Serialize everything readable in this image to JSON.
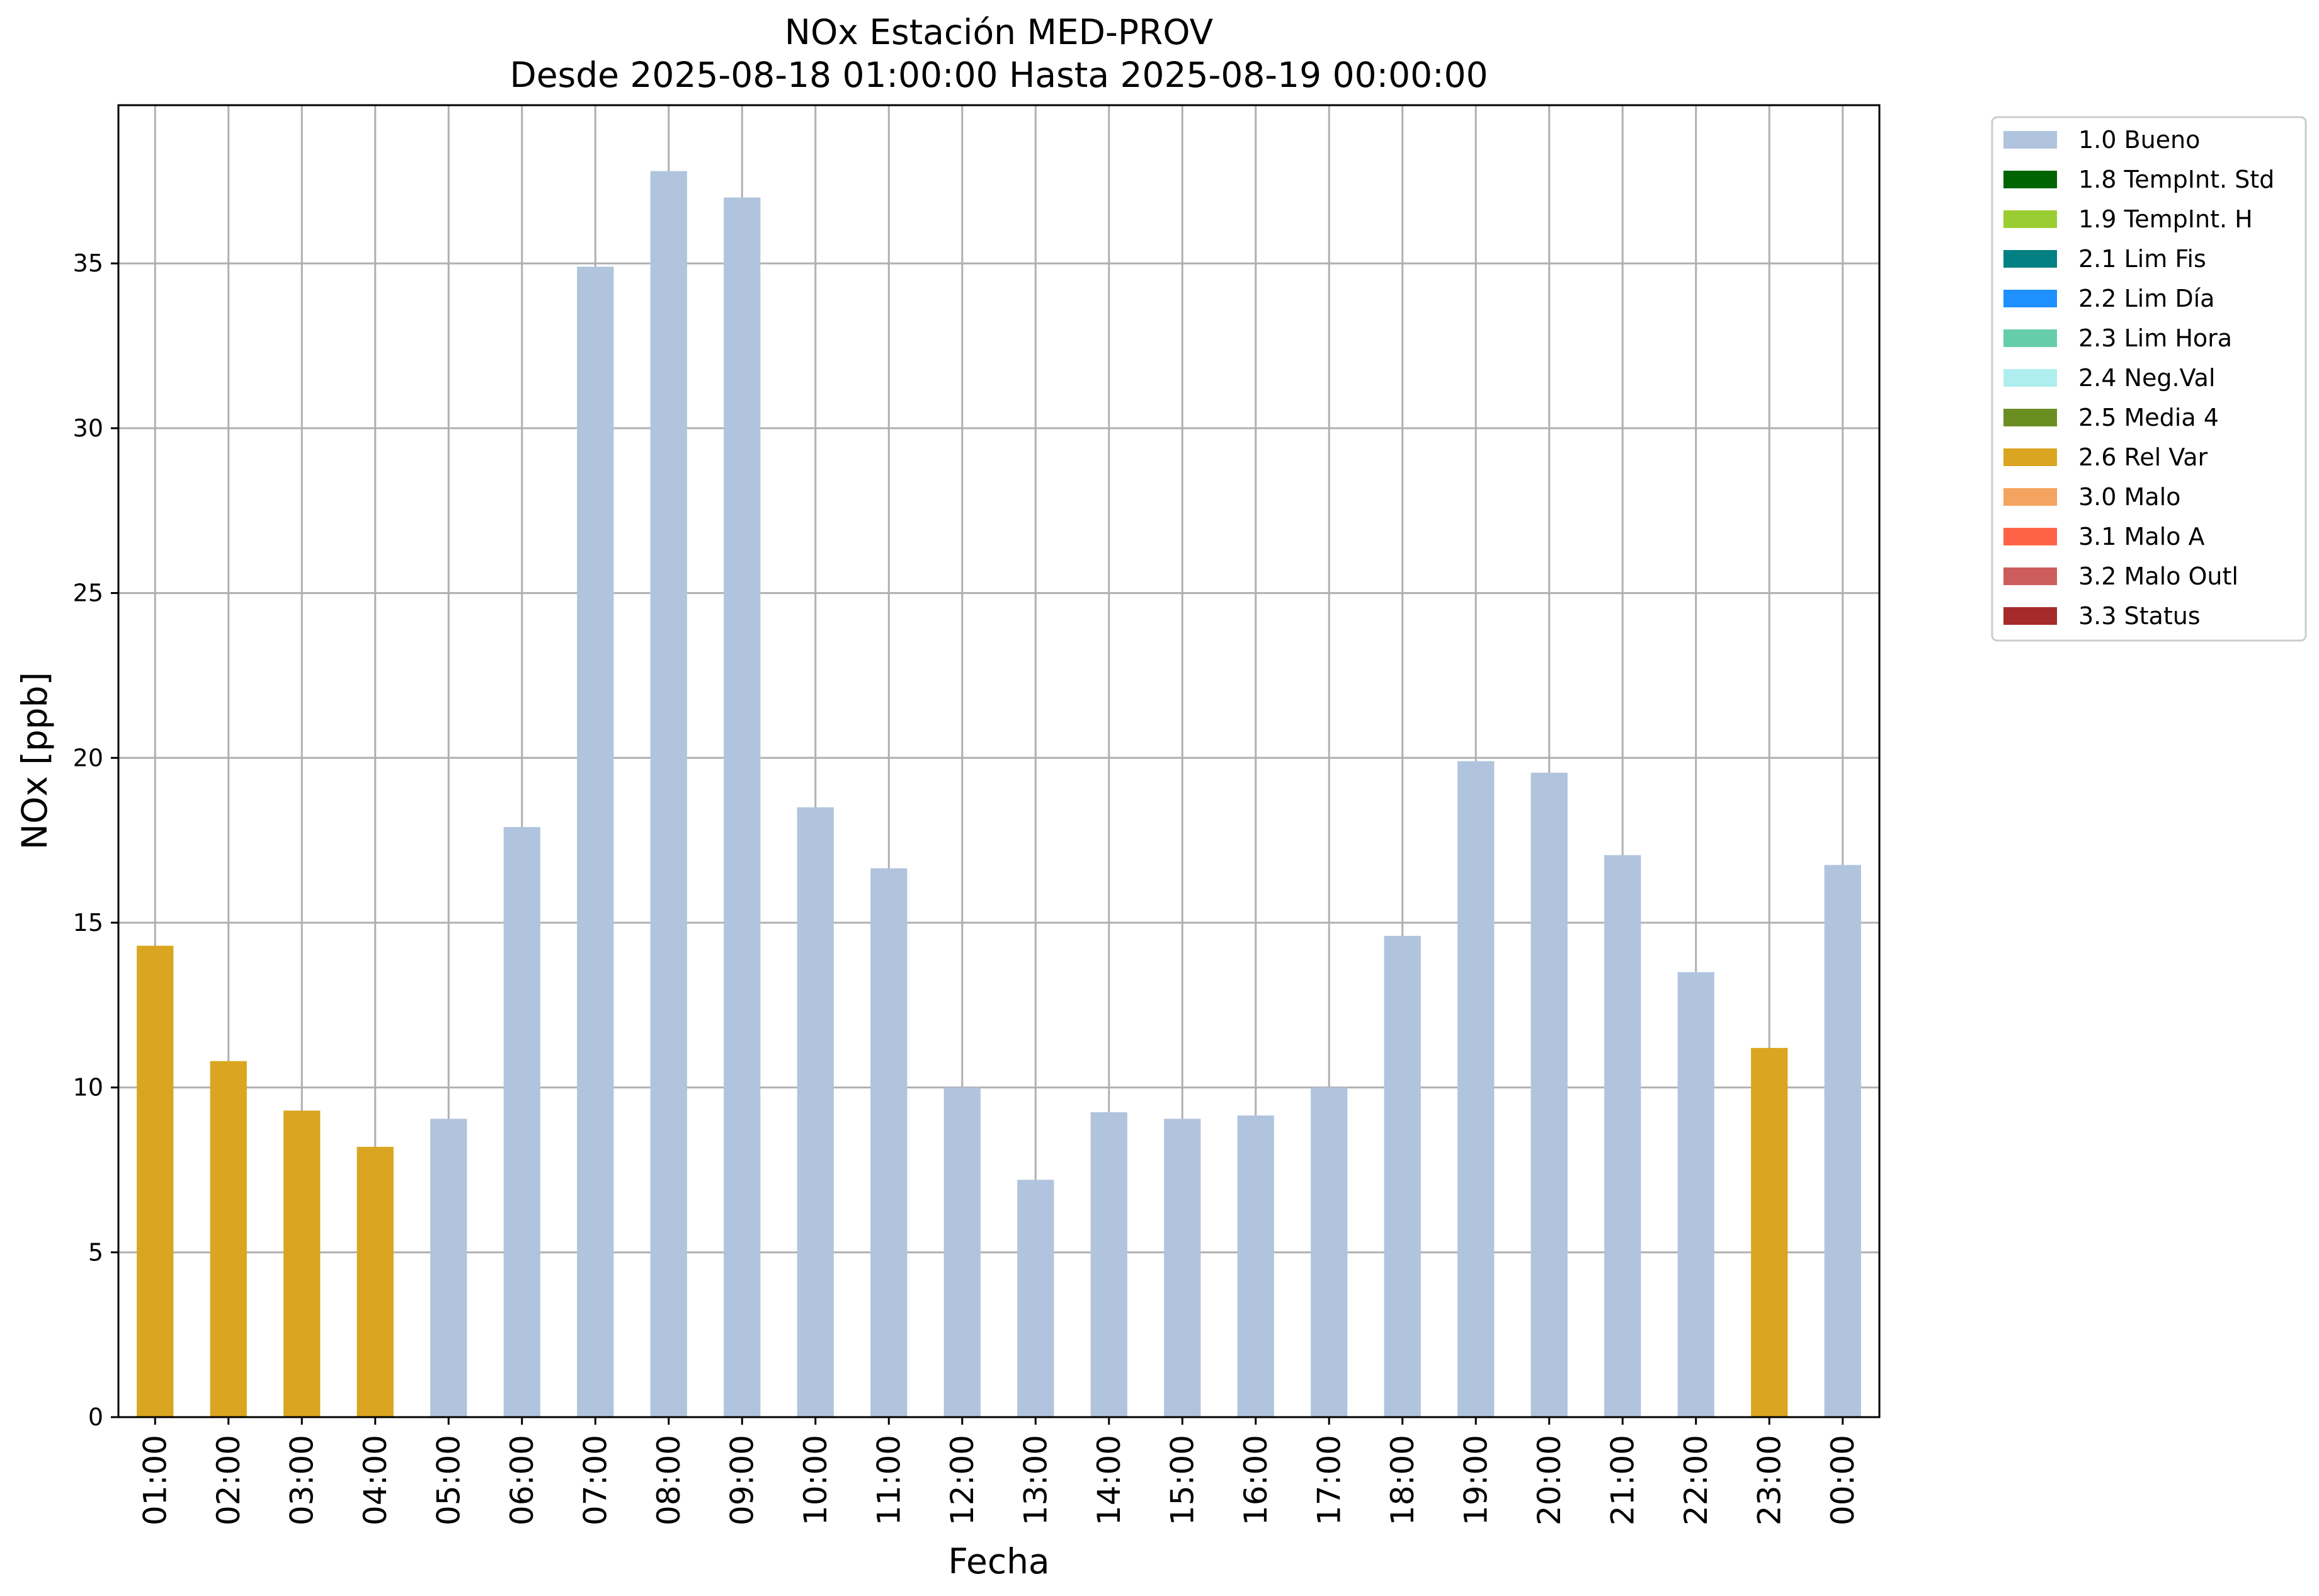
{
  "chart_data": {
    "type": "bar",
    "title": "NOx Estación MED-PROV",
    "subtitle": "Desde 2025-08-18 01:00:00 Hasta 2025-08-19 00:00:00",
    "xlabel": "Fecha",
    "ylabel": "NOx [ppb]",
    "ylim": [
      0,
      39.8
    ],
    "yticks": [
      0,
      5,
      10,
      15,
      20,
      25,
      30,
      35
    ],
    "grid": true,
    "legend_position": "outside-top-right",
    "categories": [
      "01:00",
      "02:00",
      "03:00",
      "04:00",
      "05:00",
      "06:00",
      "07:00",
      "08:00",
      "09:00",
      "10:00",
      "11:00",
      "12:00",
      "13:00",
      "14:00",
      "15:00",
      "16:00",
      "17:00",
      "18:00",
      "19:00",
      "20:00",
      "21:00",
      "22:00",
      "23:00",
      "00:00"
    ],
    "values": [
      14.3,
      10.8,
      9.3,
      8.2,
      9.05,
      17.9,
      34.9,
      37.8,
      37.0,
      18.5,
      16.65,
      10.0,
      7.2,
      9.25,
      9.05,
      9.15,
      10.0,
      14.6,
      19.9,
      19.55,
      17.05,
      13.5,
      11.2,
      16.75
    ],
    "flags": [
      "2.6 Rel Var",
      "2.6 Rel Var",
      "2.6 Rel Var",
      "2.6 Rel Var",
      "1.0 Bueno",
      "1.0 Bueno",
      "1.0 Bueno",
      "1.0 Bueno",
      "1.0 Bueno",
      "1.0 Bueno",
      "1.0 Bueno",
      "1.0 Bueno",
      "1.0 Bueno",
      "1.0 Bueno",
      "1.0 Bueno",
      "1.0 Bueno",
      "1.0 Bueno",
      "1.0 Bueno",
      "1.0 Bueno",
      "1.0 Bueno",
      "1.0 Bueno",
      "1.0 Bueno",
      "2.6 Rel Var",
      "1.0 Bueno"
    ],
    "legend": [
      {
        "label": "1.0 Bueno",
        "color": "#b0c4de"
      },
      {
        "label": "1.8 TempInt. Std",
        "color": "#006400"
      },
      {
        "label": "1.9 TempInt. H",
        "color": "#9acd32"
      },
      {
        "label": "2.1 Lim Fis",
        "color": "#008080"
      },
      {
        "label": "2.2 Lim Día",
        "color": "#1e90ff"
      },
      {
        "label": "2.3 Lim Hora",
        "color": "#66cdaa"
      },
      {
        "label": "2.4 Neg.Val",
        "color": "#afeeee"
      },
      {
        "label": "2.5 Media 4",
        "color": "#6b8e23"
      },
      {
        "label": "2.6 Rel Var",
        "color": "#daa520"
      },
      {
        "label": "3.0 Malo",
        "color": "#f4a460"
      },
      {
        "label": "3.1 Malo A",
        "color": "#ff6347"
      },
      {
        "label": "3.2 Malo Outl",
        "color": "#cd5c5c"
      },
      {
        "label": "3.3 Status",
        "color": "#a52a2a"
      }
    ]
  }
}
